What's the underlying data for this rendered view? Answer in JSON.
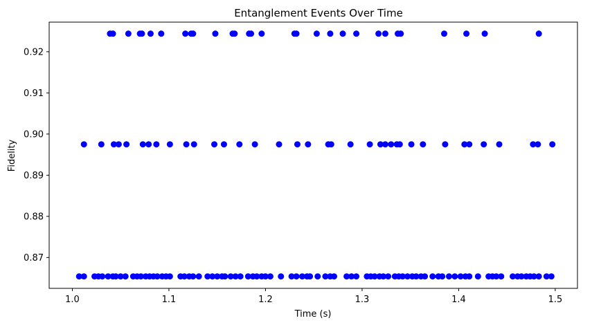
{
  "chart_data": {
    "type": "scatter",
    "title": "Entanglement Events Over Time",
    "xlabel": "Time (s)",
    "ylabel": "Fidelity",
    "xlim": [
      0.976,
      1.523
    ],
    "ylim": [
      0.8625,
      0.9272
    ],
    "xticks": [
      1.0,
      1.1,
      1.2,
      1.3,
      1.4,
      1.5
    ],
    "xtick_labels": [
      "1.0",
      "1.1",
      "1.2",
      "1.3",
      "1.4",
      "1.5"
    ],
    "yticks": [
      0.87,
      0.88,
      0.89,
      0.9,
      0.91,
      0.92
    ],
    "ytick_labels": [
      "0.87",
      "0.88",
      "0.89",
      "0.90",
      "0.91",
      "0.92"
    ],
    "grid": false,
    "marker_color": "#0000ff",
    "series": [
      {
        "points": [
          {
            "x": 1.039,
            "y": 0.9244
          },
          {
            "x": 1.042,
            "y": 0.9244
          },
          {
            "x": 1.058,
            "y": 0.9244
          },
          {
            "x": 1.07,
            "y": 0.9244
          },
          {
            "x": 1.072,
            "y": 0.9244
          },
          {
            "x": 1.081,
            "y": 0.9244
          },
          {
            "x": 1.092,
            "y": 0.9244
          },
          {
            "x": 1.117,
            "y": 0.9244
          },
          {
            "x": 1.123,
            "y": 0.9244
          },
          {
            "x": 1.125,
            "y": 0.9244
          },
          {
            "x": 1.148,
            "y": 0.9244
          },
          {
            "x": 1.166,
            "y": 0.9244
          },
          {
            "x": 1.168,
            "y": 0.9244
          },
          {
            "x": 1.183,
            "y": 0.9244
          },
          {
            "x": 1.185,
            "y": 0.9244
          },
          {
            "x": 1.196,
            "y": 0.9244
          },
          {
            "x": 1.23,
            "y": 0.9244
          },
          {
            "x": 1.232,
            "y": 0.9244
          },
          {
            "x": 1.253,
            "y": 0.9244
          },
          {
            "x": 1.267,
            "y": 0.9244
          },
          {
            "x": 1.28,
            "y": 0.9244
          },
          {
            "x": 1.294,
            "y": 0.9244
          },
          {
            "x": 1.317,
            "y": 0.9244
          },
          {
            "x": 1.324,
            "y": 0.9244
          },
          {
            "x": 1.337,
            "y": 0.9244
          },
          {
            "x": 1.34,
            "y": 0.9244
          },
          {
            "x": 1.385,
            "y": 0.9244
          },
          {
            "x": 1.408,
            "y": 0.9244
          },
          {
            "x": 1.427,
            "y": 0.9244
          },
          {
            "x": 1.483,
            "y": 0.9244
          },
          {
            "x": 1.012,
            "y": 0.8975
          },
          {
            "x": 1.03,
            "y": 0.8975
          },
          {
            "x": 1.043,
            "y": 0.8975
          },
          {
            "x": 1.048,
            "y": 0.8975
          },
          {
            "x": 1.056,
            "y": 0.8975
          },
          {
            "x": 1.073,
            "y": 0.8975
          },
          {
            "x": 1.079,
            "y": 0.8975
          },
          {
            "x": 1.087,
            "y": 0.8975
          },
          {
            "x": 1.101,
            "y": 0.8975
          },
          {
            "x": 1.118,
            "y": 0.8975
          },
          {
            "x": 1.126,
            "y": 0.8975
          },
          {
            "x": 1.147,
            "y": 0.8975
          },
          {
            "x": 1.157,
            "y": 0.8975
          },
          {
            "x": 1.173,
            "y": 0.8975
          },
          {
            "x": 1.189,
            "y": 0.8975
          },
          {
            "x": 1.214,
            "y": 0.8975
          },
          {
            "x": 1.233,
            "y": 0.8975
          },
          {
            "x": 1.244,
            "y": 0.8975
          },
          {
            "x": 1.265,
            "y": 0.8975
          },
          {
            "x": 1.268,
            "y": 0.8975
          },
          {
            "x": 1.288,
            "y": 0.8975
          },
          {
            "x": 1.308,
            "y": 0.8975
          },
          {
            "x": 1.319,
            "y": 0.8975
          },
          {
            "x": 1.324,
            "y": 0.8975
          },
          {
            "x": 1.33,
            "y": 0.8975
          },
          {
            "x": 1.336,
            "y": 0.8975
          },
          {
            "x": 1.339,
            "y": 0.8975
          },
          {
            "x": 1.351,
            "y": 0.8975
          },
          {
            "x": 1.363,
            "y": 0.8975
          },
          {
            "x": 1.386,
            "y": 0.8975
          },
          {
            "x": 1.406,
            "y": 0.8975
          },
          {
            "x": 1.411,
            "y": 0.8975
          },
          {
            "x": 1.426,
            "y": 0.8975
          },
          {
            "x": 1.442,
            "y": 0.8975
          },
          {
            "x": 1.477,
            "y": 0.8975
          },
          {
            "x": 1.482,
            "y": 0.8975
          },
          {
            "x": 1.497,
            "y": 0.8975
          },
          {
            "x": 1.007,
            "y": 0.8654
          },
          {
            "x": 1.012,
            "y": 0.8654
          },
          {
            "x": 1.023,
            "y": 0.8654
          },
          {
            "x": 1.027,
            "y": 0.8654
          },
          {
            "x": 1.031,
            "y": 0.8654
          },
          {
            "x": 1.037,
            "y": 0.8654
          },
          {
            "x": 1.042,
            "y": 0.8654
          },
          {
            "x": 1.045,
            "y": 0.8654
          },
          {
            "x": 1.05,
            "y": 0.8654
          },
          {
            "x": 1.055,
            "y": 0.8654
          },
          {
            "x": 1.063,
            "y": 0.8654
          },
          {
            "x": 1.067,
            "y": 0.8654
          },
          {
            "x": 1.071,
            "y": 0.8654
          },
          {
            "x": 1.076,
            "y": 0.8654
          },
          {
            "x": 1.08,
            "y": 0.8654
          },
          {
            "x": 1.084,
            "y": 0.8654
          },
          {
            "x": 1.088,
            "y": 0.8654
          },
          {
            "x": 1.093,
            "y": 0.8654
          },
          {
            "x": 1.097,
            "y": 0.8654
          },
          {
            "x": 1.101,
            "y": 0.8654
          },
          {
            "x": 1.112,
            "y": 0.8654
          },
          {
            "x": 1.116,
            "y": 0.8654
          },
          {
            "x": 1.121,
            "y": 0.8654
          },
          {
            "x": 1.125,
            "y": 0.8654
          },
          {
            "x": 1.131,
            "y": 0.8654
          },
          {
            "x": 1.14,
            "y": 0.8654
          },
          {
            "x": 1.145,
            "y": 0.8654
          },
          {
            "x": 1.15,
            "y": 0.8654
          },
          {
            "x": 1.155,
            "y": 0.8654
          },
          {
            "x": 1.158,
            "y": 0.8654
          },
          {
            "x": 1.164,
            "y": 0.8654
          },
          {
            "x": 1.169,
            "y": 0.8654
          },
          {
            "x": 1.174,
            "y": 0.8654
          },
          {
            "x": 1.182,
            "y": 0.8654
          },
          {
            "x": 1.187,
            "y": 0.8654
          },
          {
            "x": 1.191,
            "y": 0.8654
          },
          {
            "x": 1.196,
            "y": 0.8654
          },
          {
            "x": 1.2,
            "y": 0.8654
          },
          {
            "x": 1.205,
            "y": 0.8654
          },
          {
            "x": 1.216,
            "y": 0.8654
          },
          {
            "x": 1.227,
            "y": 0.8654
          },
          {
            "x": 1.232,
            "y": 0.8654
          },
          {
            "x": 1.238,
            "y": 0.8654
          },
          {
            "x": 1.243,
            "y": 0.8654
          },
          {
            "x": 1.246,
            "y": 0.8654
          },
          {
            "x": 1.254,
            "y": 0.8654
          },
          {
            "x": 1.262,
            "y": 0.8654
          },
          {
            "x": 1.267,
            "y": 0.8654
          },
          {
            "x": 1.271,
            "y": 0.8654
          },
          {
            "x": 1.284,
            "y": 0.8654
          },
          {
            "x": 1.289,
            "y": 0.8654
          },
          {
            "x": 1.294,
            "y": 0.8654
          },
          {
            "x": 1.305,
            "y": 0.8654
          },
          {
            "x": 1.309,
            "y": 0.8654
          },
          {
            "x": 1.313,
            "y": 0.8654
          },
          {
            "x": 1.318,
            "y": 0.8654
          },
          {
            "x": 1.322,
            "y": 0.8654
          },
          {
            "x": 1.327,
            "y": 0.8654
          },
          {
            "x": 1.334,
            "y": 0.8654
          },
          {
            "x": 1.338,
            "y": 0.8654
          },
          {
            "x": 1.342,
            "y": 0.8654
          },
          {
            "x": 1.347,
            "y": 0.8654
          },
          {
            "x": 1.352,
            "y": 0.8654
          },
          {
            "x": 1.356,
            "y": 0.8654
          },
          {
            "x": 1.361,
            "y": 0.8654
          },
          {
            "x": 1.365,
            "y": 0.8654
          },
          {
            "x": 1.373,
            "y": 0.8654
          },
          {
            "x": 1.379,
            "y": 0.8654
          },
          {
            "x": 1.383,
            "y": 0.8654
          },
          {
            "x": 1.39,
            "y": 0.8654
          },
          {
            "x": 1.396,
            "y": 0.8654
          },
          {
            "x": 1.402,
            "y": 0.8654
          },
          {
            "x": 1.407,
            "y": 0.8654
          },
          {
            "x": 1.411,
            "y": 0.8654
          },
          {
            "x": 1.42,
            "y": 0.8654
          },
          {
            "x": 1.431,
            "y": 0.8654
          },
          {
            "x": 1.435,
            "y": 0.8654
          },
          {
            "x": 1.439,
            "y": 0.8654
          },
          {
            "x": 1.444,
            "y": 0.8654
          },
          {
            "x": 1.456,
            "y": 0.8654
          },
          {
            "x": 1.461,
            "y": 0.8654
          },
          {
            "x": 1.465,
            "y": 0.8654
          },
          {
            "x": 1.47,
            "y": 0.8654
          },
          {
            "x": 1.474,
            "y": 0.8654
          },
          {
            "x": 1.478,
            "y": 0.8654
          },
          {
            "x": 1.483,
            "y": 0.8654
          },
          {
            "x": 1.491,
            "y": 0.8654
          },
          {
            "x": 1.496,
            "y": 0.8654
          }
        ]
      }
    ]
  }
}
